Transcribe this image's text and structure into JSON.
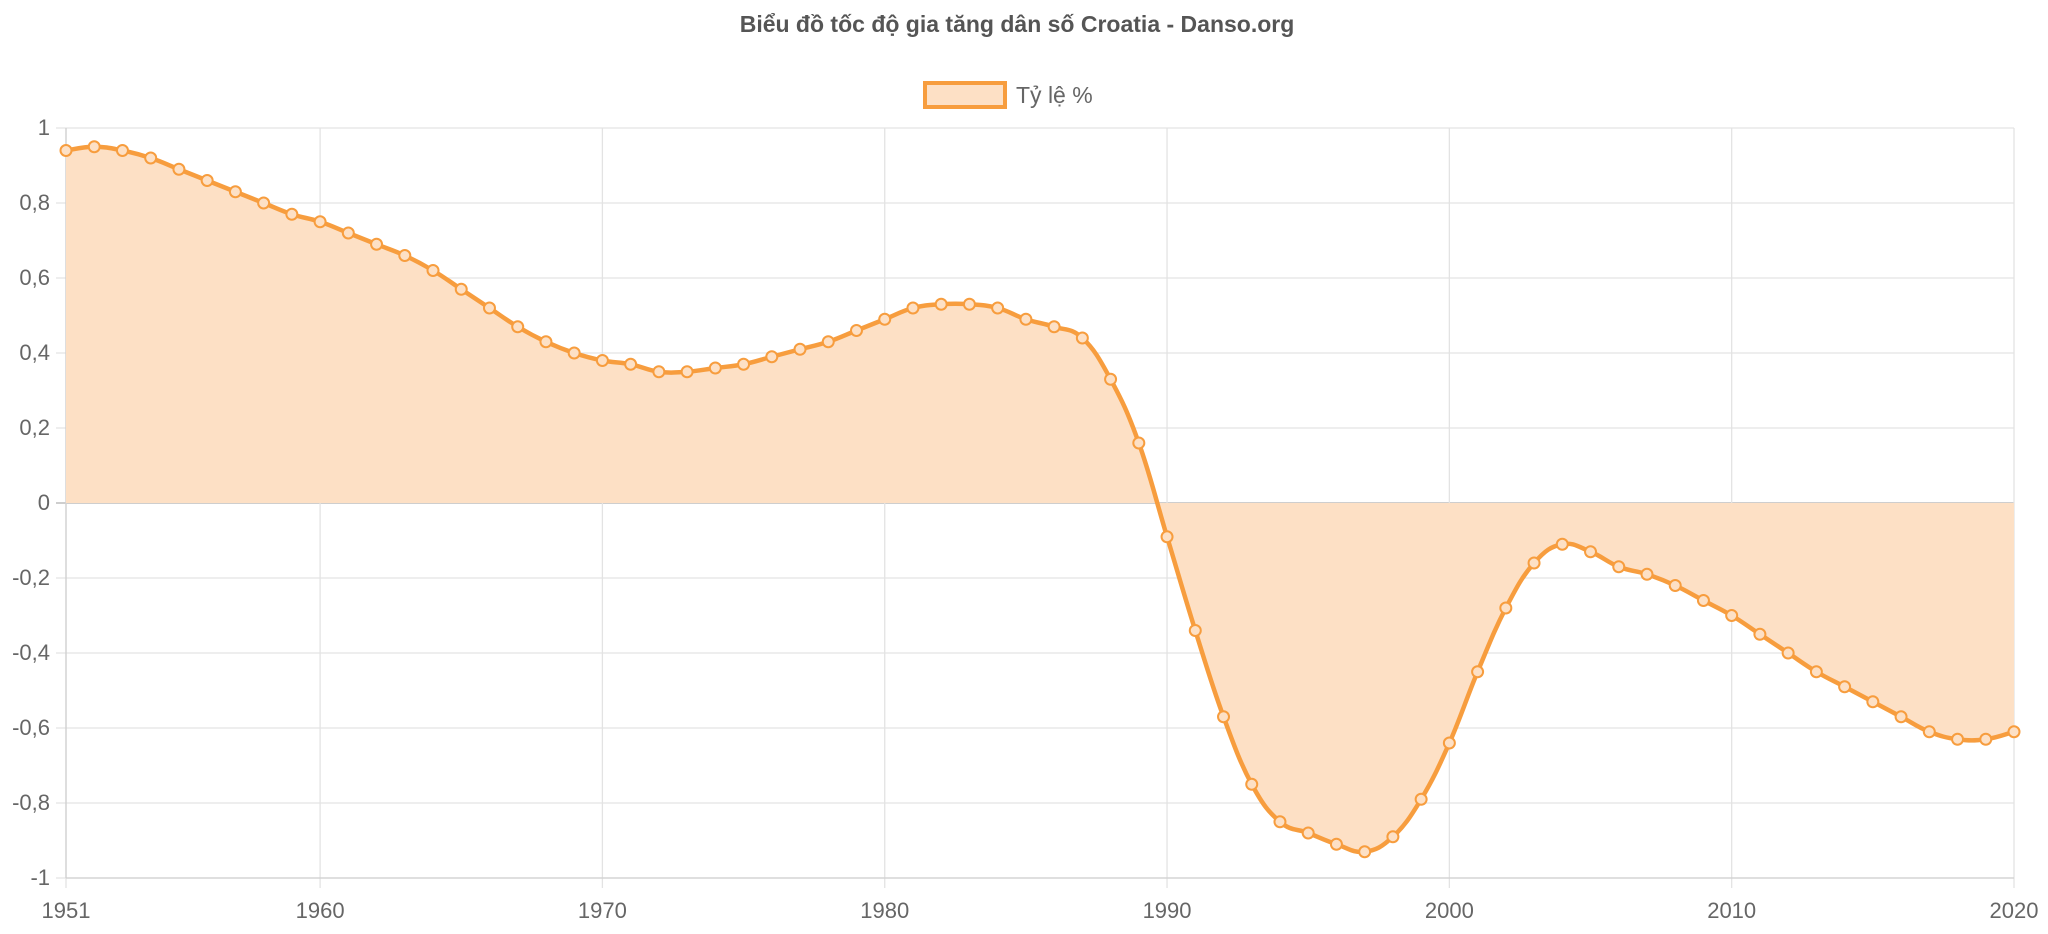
{
  "chart_data": {
    "type": "area",
    "title": "Biểu đồ tốc độ gia tăng dân số Croatia - Danso.org",
    "legend": {
      "position": "top",
      "entries": [
        "Tỷ lệ %"
      ]
    },
    "grid": true,
    "xlim": [
      1951,
      2020
    ],
    "ylim": [
      -1,
      1
    ],
    "x_ticks": [
      "1951",
      "1960",
      "1970",
      "1980",
      "1990",
      "2000",
      "2010",
      "2020"
    ],
    "y_ticks": [
      "1",
      "0,8",
      "0,6",
      "0,4",
      "0,2",
      "0",
      "-0,2",
      "-0,4",
      "-0,6",
      "-0,8",
      "-1"
    ],
    "x": [
      1951,
      1952,
      1953,
      1954,
      1955,
      1956,
      1957,
      1958,
      1959,
      1960,
      1961,
      1962,
      1963,
      1964,
      1965,
      1966,
      1967,
      1968,
      1969,
      1970,
      1971,
      1972,
      1973,
      1974,
      1975,
      1976,
      1977,
      1978,
      1979,
      1980,
      1981,
      1982,
      1983,
      1984,
      1985,
      1986,
      1987,
      1988,
      1989,
      1990,
      1991,
      1992,
      1993,
      1994,
      1995,
      1996,
      1997,
      1998,
      1999,
      2000,
      2001,
      2002,
      2003,
      2004,
      2005,
      2006,
      2007,
      2008,
      2009,
      2010,
      2011,
      2012,
      2013,
      2014,
      2015,
      2016,
      2017,
      2018,
      2019,
      2020
    ],
    "series": [
      {
        "name": "Tỷ lệ %",
        "color": "#f79d3e",
        "fill": "#fde0c5",
        "values": [
          0.94,
          0.95,
          0.94,
          0.92,
          0.89,
          0.86,
          0.83,
          0.8,
          0.77,
          0.75,
          0.72,
          0.69,
          0.66,
          0.62,
          0.57,
          0.52,
          0.47,
          0.43,
          0.4,
          0.38,
          0.37,
          0.35,
          0.35,
          0.36,
          0.37,
          0.39,
          0.41,
          0.43,
          0.46,
          0.49,
          0.52,
          0.53,
          0.53,
          0.52,
          0.49,
          0.47,
          0.44,
          0.33,
          0.16,
          -0.09,
          -0.34,
          -0.57,
          -0.75,
          -0.85,
          -0.88,
          -0.91,
          -0.93,
          -0.89,
          -0.79,
          -0.64,
          -0.45,
          -0.28,
          -0.16,
          -0.11,
          -0.13,
          -0.17,
          -0.19,
          -0.22,
          -0.26,
          -0.3,
          -0.35,
          -0.4,
          -0.45,
          -0.49,
          -0.53,
          -0.57,
          -0.61,
          -0.63,
          -0.63,
          -0.61
        ]
      }
    ]
  }
}
